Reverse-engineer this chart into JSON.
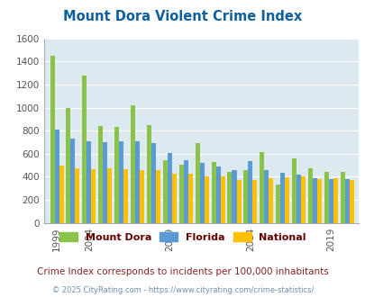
{
  "title": "Mount Dora Violent Crime Index",
  "title_color": "#1060a0",
  "subtitle": "Crime Index corresponds to incidents per 100,000 inhabitants",
  "subtitle_color": "#882222",
  "footer": "© 2025 CityRating.com - https://www.cityrating.com/crime-statistics/",
  "footer_color": "#7090b0",
  "years": [
    1999,
    2001,
    2004,
    2005,
    2006,
    2007,
    2008,
    2009,
    2010,
    2011,
    2012,
    2013,
    2014,
    2015,
    2016,
    2017,
    2018,
    2019,
    2020
  ],
  "mount_dora": [
    1450,
    1000,
    1280,
    840,
    835,
    1020,
    845,
    540,
    505,
    690,
    530,
    440,
    460,
    615,
    335,
    560,
    475,
    445,
    440
  ],
  "florida": [
    810,
    730,
    710,
    700,
    705,
    710,
    690,
    605,
    545,
    520,
    490,
    460,
    535,
    460,
    435,
    415,
    390,
    380,
    380
  ],
  "national": [
    500,
    470,
    465,
    475,
    465,
    460,
    455,
    430,
    425,
    400,
    400,
    375,
    375,
    385,
    395,
    405,
    380,
    385,
    375
  ],
  "xtick_years": [
    1999,
    2004,
    2009,
    2014,
    2019
  ],
  "ylim": [
    0,
    1600
  ],
  "yticks": [
    0,
    200,
    400,
    600,
    800,
    1000,
    1200,
    1400,
    1600
  ],
  "color_mount_dora": "#8bc34a",
  "color_florida": "#5b9bd5",
  "color_national": "#ffc000",
  "bg_color": "#dce9f0",
  "grid_color": "#ffffff",
  "legend_text_color": "#660000",
  "legend_labels": [
    "Mount Dora",
    "Florida",
    "National"
  ]
}
